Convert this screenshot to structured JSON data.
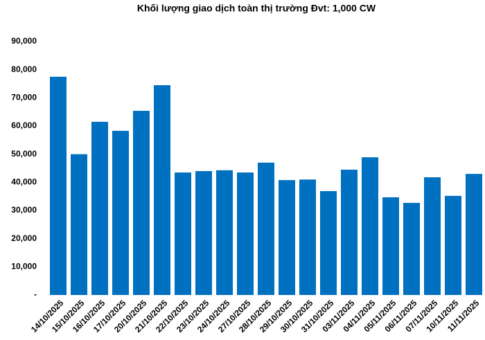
{
  "chart_data": {
    "type": "bar",
    "title": "Khối lượng giao dịch toàn thị trường Đvt: 1,000 CW",
    "categories": [
      "14/10/2025",
      "15/10/2025",
      "16/10/2025",
      "17/10/2025",
      "20/10/2025",
      "21/10/2025",
      "22/10/2025",
      "23/10/2025",
      "24/10/2025",
      "27/10/2025",
      "28/10/2025",
      "29/10/2025",
      "30/10/2025",
      "31/10/2025",
      "03/11/2025",
      "04/11/2025",
      "05/11/2025",
      "06/11/2025",
      "07/11/2025",
      "10/11/2025",
      "11/11/2025"
    ],
    "values": [
      77500,
      50000,
      61500,
      58300,
      65400,
      74500,
      43500,
      44000,
      44300,
      43500,
      47000,
      40800,
      41000,
      36900,
      44500,
      48900,
      34700,
      32700,
      41800,
      35200,
      43000
    ],
    "color": "#0070c0",
    "ylim": [
      0,
      90000
    ],
    "yticks": [
      {
        "value": 0,
        "label": "-"
      },
      {
        "value": 10000,
        "label": "10,000"
      },
      {
        "value": 20000,
        "label": "20,000"
      },
      {
        "value": 30000,
        "label": "30,000"
      },
      {
        "value": 40000,
        "label": "40,000"
      },
      {
        "value": 50000,
        "label": "50,000"
      },
      {
        "value": 60000,
        "label": "60,000"
      },
      {
        "value": 70000,
        "label": "70,000"
      },
      {
        "value": 80000,
        "label": "80,000"
      },
      {
        "value": 90000,
        "label": "90,000"
      }
    ],
    "grid": false
  }
}
